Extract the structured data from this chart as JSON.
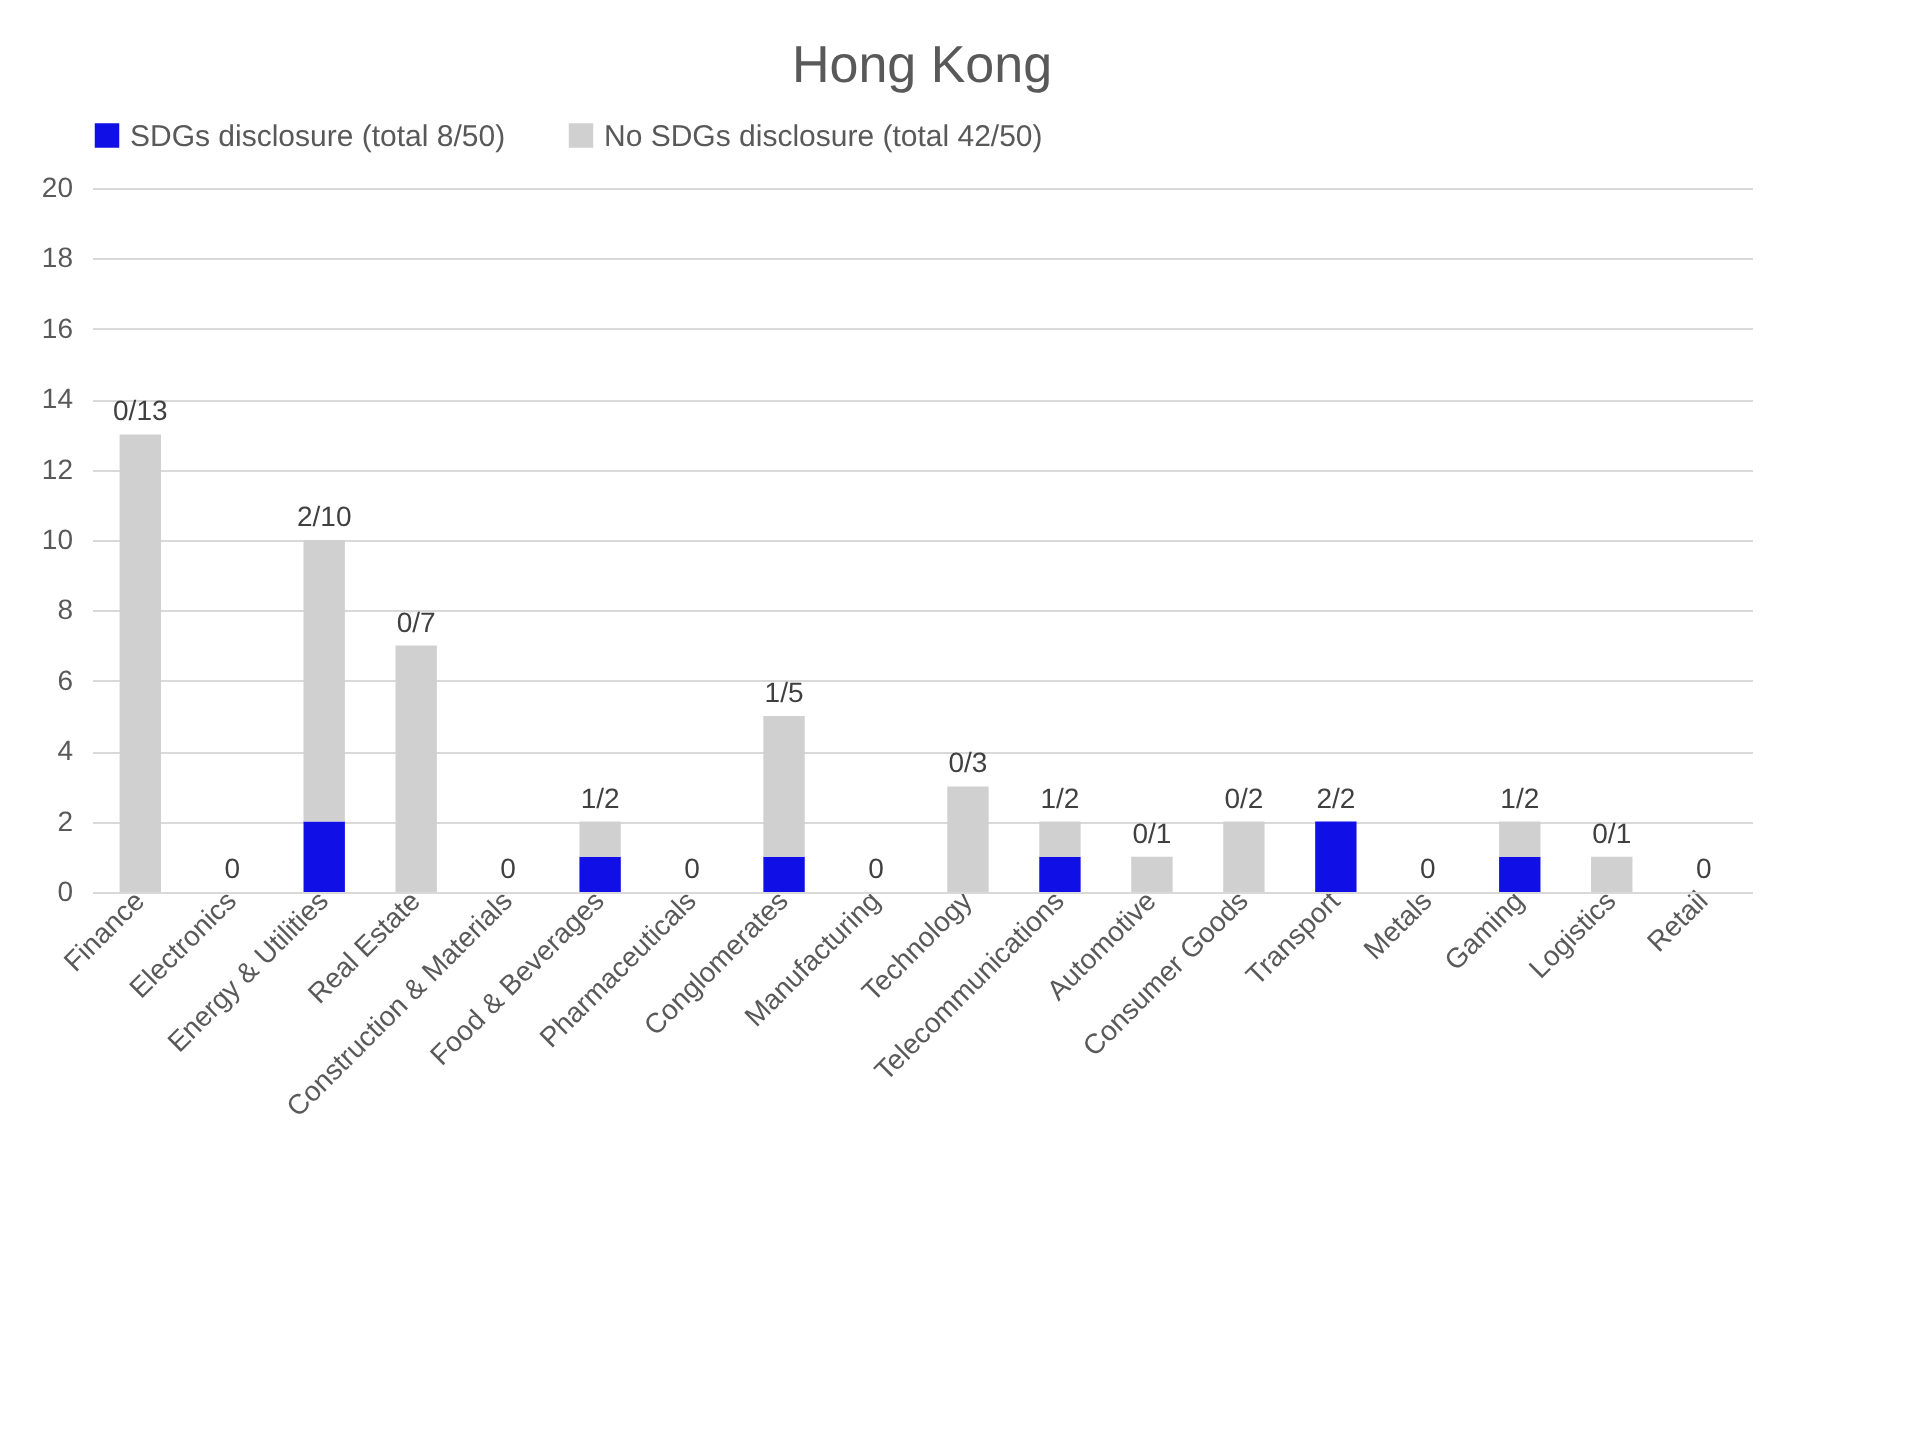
{
  "chart_data": {
    "type": "bar",
    "title": "Hong Kong",
    "stacked": true,
    "categories": [
      "Finance",
      "Electronics",
      "Energy & Utilities",
      "Real Estate",
      "Construction & Materials",
      "Food & Beverages",
      "Pharmaceuticals",
      "Conglomerates",
      "Manufacturing",
      "Technology",
      "Telecommunications",
      "Automotive",
      "Consumer Goods",
      "Transport",
      "Metals",
      "Gaming",
      "Logistics",
      "Retail"
    ],
    "series": [
      {
        "name": "SDGs disclosure (total 8/50)",
        "color": "#1010e6",
        "values": [
          0,
          0,
          2,
          0,
          0,
          1,
          0,
          1,
          0,
          0,
          1,
          0,
          0,
          2,
          0,
          1,
          0,
          0
        ]
      },
      {
        "name": "No SDGs disclosure (total 42/50)",
        "color": "#d0d0d0",
        "values": [
          13,
          0,
          8,
          7,
          0,
          1,
          0,
          4,
          0,
          3,
          1,
          1,
          2,
          0,
          0,
          1,
          1,
          0
        ]
      }
    ],
    "annotations": [
      {
        "text": "0/13",
        "x": "Finance",
        "y": 13
      },
      {
        "text": "0",
        "x": "Electronics",
        "y": 0
      },
      {
        "text": "2/10",
        "x": "Energy & Utilities",
        "y": 10
      },
      {
        "text": "0/7",
        "x": "Real Estate",
        "y": 7
      },
      {
        "text": "0",
        "x": "Construction & Materials",
        "y": 0
      },
      {
        "text": "1/2",
        "x": "Food & Beverages",
        "y": 2
      },
      {
        "text": "0",
        "x": "Pharmaceuticals",
        "y": 0
      },
      {
        "text": "1/5",
        "x": "Conglomerates",
        "y": 5
      },
      {
        "text": "0",
        "x": "Manufacturing",
        "y": 0
      },
      {
        "text": "0/3",
        "x": "Technology",
        "y": 3
      },
      {
        "text": "1/2",
        "x": "Telecommunications",
        "y": 2
      },
      {
        "text": "0/1",
        "x": "Automotive",
        "y": 1
      },
      {
        "text": "0/2",
        "x": "Consumer Goods",
        "y": 2
      },
      {
        "text": "2/2",
        "x": "Transport",
        "y": 2
      },
      {
        "text": "0",
        "x": "Metals",
        "y": 0
      },
      {
        "text": "1/2",
        "x": "Gaming",
        "y": 2
      },
      {
        "text": "0/1",
        "x": "Logistics",
        "y": 1
      },
      {
        "text": "0",
        "x": "Retail",
        "y": 0
      }
    ],
    "ylim": [
      0,
      20
    ],
    "yticks": [
      0,
      2,
      4,
      6,
      8,
      10,
      12,
      14,
      16,
      18,
      20
    ],
    "grid": "y",
    "legend": "top"
  }
}
